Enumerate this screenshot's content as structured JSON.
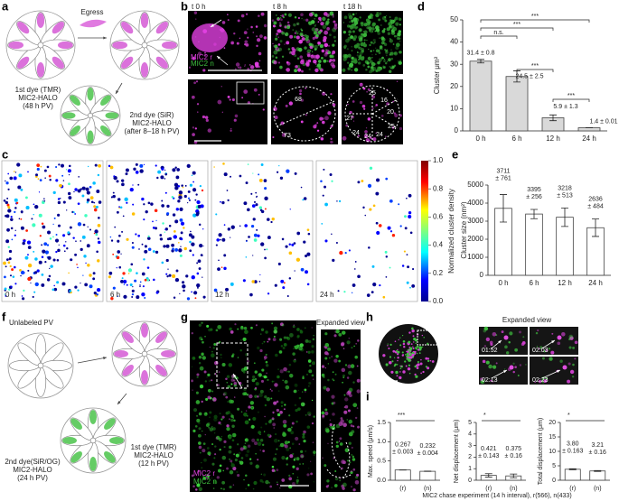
{
  "panels": {
    "a": {
      "label": "a",
      "egress": "Egress",
      "first_dye": [
        "1st dye (TMR)",
        "MIC2-HALO",
        "(48 h PV)"
      ],
      "second_dye": [
        "2nd dye (SiR)",
        "MIC2-HALO",
        "(after 8–18 h PV)"
      ]
    },
    "b": {
      "label": "b",
      "times": [
        "t 0 h",
        "t 8 h",
        "t 18 h"
      ],
      "channels": [
        "MIC2 r",
        "MIC2 n"
      ],
      "counts": [
        68,
        73,
        25,
        16,
        20,
        27,
        24,
        24,
        24,
        25
      ]
    },
    "c": {
      "label": "c",
      "times": [
        "0 h",
        "6 h",
        "12 h",
        "24 h"
      ],
      "colorbar": {
        "label": "Normalized cluster density",
        "lim": [
          0,
          1
        ],
        "ticks": [
          {
            "value": 0,
            "label": "0.0"
          },
          {
            "value": 0.2,
            "label": "0.2"
          },
          {
            "value": 0.4,
            "label": "0.4"
          },
          {
            "value": 0.6,
            "label": "0.6"
          },
          {
            "value": 0.8,
            "label": "0.8"
          },
          {
            "value": 1,
            "label": "1.0"
          }
        ]
      }
    },
    "d": {
      "label": "d",
      "chart_data": {
        "type": "bar",
        "y_label": "Cluster μm²",
        "categories": [
          "0 h",
          "6 h",
          "12 h",
          "24 h"
        ],
        "values": [
          31.4,
          24.5,
          5.9,
          1.4
        ],
        "errors": [
          0.8,
          2.5,
          1.3,
          0.01
        ],
        "value_labels": [
          "31.4 ± 0.8",
          "24.5 ± 2.5",
          "5.9 ± 1.3",
          "1.4 ± 0.01"
        ],
        "color": "#d9d9d9",
        "ylim": [
          0,
          50
        ],
        "yticks": [
          0,
          10,
          20,
          30,
          40,
          50
        ],
        "annotations": [
          "***",
          "***",
          "n.s.",
          "***",
          "***"
        ]
      }
    },
    "e": {
      "label": "e",
      "chart_data": {
        "type": "bar",
        "y_label": "Cluster size (nm²)",
        "categories": [
          "0 h",
          "6 h",
          "12 h",
          "24 h"
        ],
        "values": [
          3711,
          3395,
          3218,
          2636
        ],
        "errors": [
          761,
          256,
          513,
          484
        ],
        "value_labels": [
          "3711 ± 761",
          "3395 ± 256",
          "3218 ± 513",
          "2636 ± 484"
        ],
        "color": "#ffffff",
        "ylim": [
          0,
          5000
        ],
        "yticks": [
          0,
          1000,
          2000,
          3000,
          4000,
          5000
        ]
      }
    },
    "f": {
      "label": "f",
      "unlabeled": "Unlabeled PV",
      "second_dye": [
        "2nd dye(SiR/OG)",
        "MIC2-HALO",
        "(24 h PV)"
      ],
      "first_dye": [
        "1st dye (TMR)",
        "MIC2-HALO",
        "(12 h PV)"
      ]
    },
    "g": {
      "label": "g",
      "expanded": "Expanded view",
      "channels": [
        "MIC2 r",
        "MIC2 n"
      ]
    },
    "h": {
      "label": "h",
      "expanded": "Expanded view",
      "times": [
        "01:52",
        "02:03",
        "02:13",
        "02:23"
      ]
    },
    "i": {
      "label": "i",
      "caption": "MIC2 chase experiment (14 h interval), r(566), n(433)",
      "charts": [
        {
          "type": "bar",
          "y_label": "Max. speed (μm/s)",
          "categories": [
            "(r)",
            "(n)"
          ],
          "values": [
            0.267,
            0.232
          ],
          "errors": [
            0.003,
            0.004
          ],
          "value_labels": [
            "0.267 ± 0.003",
            "0.232 ± 0.004"
          ],
          "significance": "***",
          "color": "#ffffff",
          "ylim": [
            0,
            1.5
          ],
          "yticks": [
            {
              "value": 0,
              "label": "0.0"
            },
            {
              "value": 0.5,
              "label": "0.5"
            },
            {
              "value": 1,
              "label": "1.0"
            },
            {
              "value": 1.5,
              "label": "1.5"
            }
          ]
        },
        {
          "type": "bar",
          "y_label": "Net displacement (μm)",
          "categories": [
            "(r)",
            "(n)"
          ],
          "values": [
            0.421,
            0.375
          ],
          "errors": [
            0.143,
            0.16
          ],
          "value_labels": [
            "0.421 ± 0.143",
            "0.375 ± 0.16"
          ],
          "significance": "*",
          "color": "#ffffff",
          "ylim": [
            0,
            5
          ],
          "yticks": [
            0,
            1,
            2,
            3,
            4,
            5
          ]
        },
        {
          "type": "bar",
          "y_label": "Total displacement (μm)",
          "categories": [
            "(r)",
            "(n)"
          ],
          "values": [
            3.8,
            3.21
          ],
          "errors": [
            0.163,
            0.16
          ],
          "value_labels": [
            "3.80 ± 0.163",
            "3.21 ± 0.16"
          ],
          "significance": "*",
          "color": "#ffffff",
          "ylim": [
            0,
            20
          ],
          "yticks": [
            0,
            5,
            10,
            15,
            20
          ]
        }
      ]
    }
  }
}
